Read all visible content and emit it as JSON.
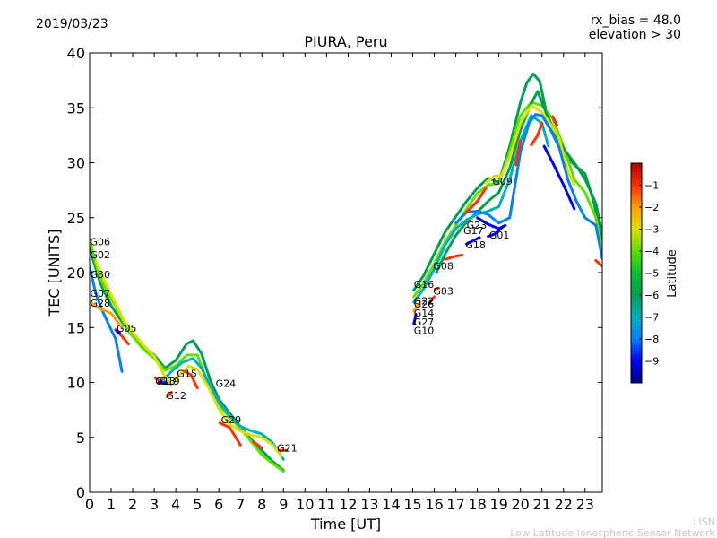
{
  "header": {
    "date": "2019/03/23",
    "rx_bias": "rx_bias = 48.0",
    "elevation": "elevation > 30"
  },
  "footer": {
    "line1": "LISN",
    "line2": "Low-Latitude Ionospheric Sensor Network"
  },
  "colorbar": {
    "label": "Latitude",
    "ticks": [
      "−1",
      "−2",
      "−3",
      "−4",
      "−5",
      "−6",
      "−7",
      "−8",
      "−9"
    ],
    "range": [
      -10,
      0
    ],
    "colors": [
      "#00007f",
      "#0000ff",
      "#0080ff",
      "#00b0c0",
      "#00a050",
      "#00c030",
      "#60e000",
      "#e0e000",
      "#ffa000",
      "#ff3000",
      "#b00000"
    ]
  },
  "chart_data": {
    "type": "line",
    "title": "PIURA, Peru",
    "xlabel": "Time [UT]",
    "ylabel": "TEC [UNITS]",
    "xlim": [
      0,
      23.8
    ],
    "ylim": [
      0,
      40
    ],
    "xticks": [
      0,
      1,
      2,
      3,
      4,
      5,
      6,
      7,
      8,
      9,
      10,
      11,
      12,
      13,
      14,
      15,
      16,
      17,
      18,
      19,
      20,
      21,
      22,
      23
    ],
    "yticks": [
      0,
      5,
      10,
      15,
      20,
      25,
      30,
      35,
      40
    ],
    "grid": false,
    "series": [
      {
        "color": "#00a050",
        "points": [
          [
            0,
            22.2
          ],
          [
            0.5,
            19
          ],
          [
            1,
            17
          ],
          [
            1.5,
            15.5
          ],
          [
            2,
            14.2
          ],
          [
            2.5,
            13.2
          ],
          [
            3,
            12.5
          ],
          [
            3.5,
            11.3
          ],
          [
            4,
            12
          ],
          [
            4.5,
            13.5
          ],
          [
            4.8,
            13.8
          ],
          [
            5.2,
            12.6
          ],
          [
            5.6,
            10.2
          ],
          [
            6,
            8.5
          ],
          [
            6.5,
            7.2
          ],
          [
            7,
            6
          ],
          [
            7.5,
            4.8
          ],
          [
            8,
            3.8
          ],
          [
            8.5,
            2.8
          ],
          [
            9,
            2
          ]
        ]
      },
      {
        "color": "#60e000",
        "points": [
          [
            0,
            23
          ],
          [
            0.4,
            20
          ],
          [
            0.8,
            18.2
          ],
          [
            1.2,
            17
          ],
          [
            1.6,
            15.4
          ],
          [
            2,
            14.2
          ],
          [
            2.5,
            13
          ],
          [
            3,
            12.2
          ],
          [
            3.5,
            11.1
          ],
          [
            4,
            11.5
          ],
          [
            4.5,
            12.5
          ],
          [
            5,
            12.5
          ],
          [
            5.5,
            9.8
          ],
          [
            6,
            8
          ],
          [
            6.5,
            6.8
          ],
          [
            7,
            5.8
          ],
          [
            7.5,
            4.6
          ],
          [
            8,
            3.4
          ],
          [
            8.5,
            2.6
          ],
          [
            9,
            1.9
          ]
        ]
      },
      {
        "color": "#00b0c0",
        "points": [
          [
            3.3,
            10
          ],
          [
            3.8,
            11
          ],
          [
            4.3,
            11.8
          ],
          [
            4.8,
            12.2
          ],
          [
            5.2,
            11.3
          ],
          [
            5.6,
            9.6
          ],
          [
            6,
            8.2
          ],
          [
            6.5,
            7
          ],
          [
            7,
            6
          ],
          [
            7.5,
            5.6
          ],
          [
            8,
            5.3
          ],
          [
            8.5,
            4.5
          ],
          [
            9,
            3
          ]
        ]
      },
      {
        "color": "#e0e000",
        "points": [
          [
            0.3,
            21
          ],
          [
            0.8,
            18.8
          ],
          [
            1.2,
            17.2
          ],
          [
            1.6,
            15.6
          ],
          [
            2,
            14.6
          ],
          [
            2.5,
            13.4
          ],
          [
            3,
            12.4
          ],
          [
            3.5,
            10.5
          ],
          [
            3.8,
            9.7
          ],
          [
            4.2,
            10.8
          ],
          [
            4.6,
            11.5
          ],
          [
            5,
            11.2
          ],
          [
            5.5,
            9.6
          ],
          [
            6,
            7.6
          ],
          [
            6.5,
            6.2
          ],
          [
            7,
            5.6
          ],
          [
            7.5,
            5.2
          ],
          [
            8,
            5
          ],
          [
            8.5,
            4.3
          ],
          [
            8.9,
            3.3
          ]
        ]
      },
      {
        "color": "#0080ff",
        "points": [
          [
            0,
            20.5
          ],
          [
            0.3,
            18
          ],
          [
            0.6,
            16.5
          ],
          [
            0.9,
            15.2
          ],
          [
            1.2,
            14
          ],
          [
            1.5,
            11
          ]
        ]
      },
      {
        "color": "#ffa000",
        "points": [
          [
            0,
            17.3
          ],
          [
            0.5,
            16.7
          ],
          [
            1,
            16.3
          ],
          [
            1.5,
            15
          ]
        ]
      },
      {
        "color": "#ff3000",
        "points": [
          [
            1.2,
            14.8
          ],
          [
            1.5,
            14.2
          ],
          [
            1.8,
            13.5
          ]
        ]
      },
      {
        "color": "#ff3000",
        "points": [
          [
            3.05,
            10.4
          ],
          [
            3.4,
            10
          ]
        ]
      },
      {
        "color": "#ff3000",
        "points": [
          [
            3.6,
            8.7
          ],
          [
            3.8,
            9.1
          ]
        ]
      },
      {
        "color": "#ff3000",
        "points": [
          [
            4.4,
            11
          ],
          [
            4.7,
            10.7
          ],
          [
            5,
            9.5
          ]
        ]
      },
      {
        "color": "#ff3000",
        "points": [
          [
            6.05,
            6.3
          ],
          [
            6.5,
            5.9
          ],
          [
            7,
            4.3
          ]
        ]
      },
      {
        "color": "#ff3000",
        "points": [
          [
            7.6,
            4.6
          ],
          [
            8,
            4
          ]
        ]
      },
      {
        "color": "#ff3000",
        "points": [
          [
            8.8,
            3.8
          ],
          [
            9.15,
            3.8
          ]
        ]
      },
      {
        "color": "#0000ff",
        "points": [
          [
            1.25,
            14.7
          ],
          [
            1.4,
            14.5
          ]
        ]
      },
      {
        "color": "#0000ff",
        "points": [
          [
            3.2,
            10
          ],
          [
            3.6,
            9.9
          ]
        ]
      },
      {
        "color": "#00a050",
        "points": [
          [
            15.05,
            18.4
          ],
          [
            15.5,
            19.7
          ],
          [
            16,
            21.7
          ],
          [
            16.5,
            23.7
          ],
          [
            17,
            25.1
          ],
          [
            17.5,
            26.5
          ],
          [
            18,
            27.7
          ],
          [
            18.5,
            28.6
          ],
          [
            19,
            28.2
          ],
          [
            19.5,
            31.5
          ],
          [
            20,
            35.5
          ],
          [
            20.3,
            37.3
          ],
          [
            20.6,
            38.1
          ],
          [
            20.9,
            37.4
          ],
          [
            21.2,
            34.6
          ],
          [
            21.6,
            32.6
          ],
          [
            22,
            30.8
          ],
          [
            22.5,
            29.8
          ],
          [
            23,
            29
          ],
          [
            23.4,
            26.5
          ],
          [
            23.8,
            22.5
          ]
        ]
      },
      {
        "color": "#60e000",
        "points": [
          [
            15.05,
            17.8
          ],
          [
            15.5,
            19
          ],
          [
            16,
            20.8
          ],
          [
            16.5,
            22.8
          ],
          [
            17,
            24.3
          ],
          [
            17.5,
            25.8
          ],
          [
            18,
            27.2
          ],
          [
            18.5,
            28
          ],
          [
            19,
            28.1
          ],
          [
            19.5,
            31
          ],
          [
            20,
            34.3
          ],
          [
            20.5,
            35.5
          ],
          [
            21,
            35.2
          ],
          [
            21.5,
            34
          ],
          [
            22,
            31.5
          ],
          [
            22.5,
            28.5
          ],
          [
            23,
            27.3
          ],
          [
            23.5,
            25
          ],
          [
            23.8,
            22
          ]
        ]
      },
      {
        "color": "#00a050",
        "points": [
          [
            16.1,
            20
          ],
          [
            16.5,
            21.7
          ],
          [
            17,
            23.4
          ],
          [
            17.5,
            24.6
          ],
          [
            18,
            25.5
          ],
          [
            18.5,
            26.5
          ],
          [
            19,
            27.3
          ],
          [
            19.5,
            29.5
          ],
          [
            20,
            33
          ],
          [
            20.5,
            35.4
          ],
          [
            20.8,
            36.5
          ],
          [
            21.2,
            34.5
          ],
          [
            21.6,
            32.8
          ],
          [
            22,
            31.3
          ],
          [
            22.5,
            30
          ],
          [
            23,
            28.5
          ],
          [
            23.5,
            26.3
          ],
          [
            23.8,
            23.5
          ]
        ]
      },
      {
        "color": "#e0e000",
        "points": [
          [
            18.4,
            28.2
          ],
          [
            18.8,
            28.8
          ],
          [
            19.1,
            28.8
          ],
          [
            19.5,
            30.5
          ],
          [
            20,
            33.6
          ],
          [
            20.5,
            35.2
          ],
          [
            21,
            34.6
          ],
          [
            21.4,
            33.5
          ],
          [
            21.8,
            32.2
          ],
          [
            22.2,
            29.2
          ],
          [
            22.5,
            28
          ]
        ]
      },
      {
        "color": "#00b0c0",
        "points": [
          [
            15.05,
            17.3
          ],
          [
            15.5,
            18.5
          ],
          [
            16,
            20.3
          ],
          [
            16.5,
            22.5
          ],
          [
            17,
            24
          ],
          [
            17.5,
            24.8
          ],
          [
            18,
            25.3
          ],
          [
            18.5,
            25.6
          ],
          [
            19,
            26
          ],
          [
            19.5,
            28.5
          ],
          [
            20,
            32
          ],
          [
            20.5,
            34.3
          ],
          [
            21,
            33.6
          ],
          [
            21.3,
            31.5
          ]
        ]
      },
      {
        "color": "#0080ff",
        "points": [
          [
            17,
            24.5
          ],
          [
            17.5,
            25.5
          ],
          [
            18,
            25.6
          ],
          [
            18.5,
            25.3
          ],
          [
            19,
            24.5
          ],
          [
            19.5,
            25
          ],
          [
            20,
            31
          ],
          [
            20.4,
            33.6
          ],
          [
            20.7,
            34.4
          ],
          [
            21,
            34.3
          ],
          [
            21.4,
            33
          ],
          [
            21.8,
            31.4
          ],
          [
            22.2,
            28.5
          ],
          [
            22.6,
            26.5
          ],
          [
            23,
            25
          ],
          [
            23.5,
            24.3
          ],
          [
            23.8,
            21.3
          ]
        ]
      },
      {
        "color": "#0000ff",
        "points": [
          [
            18,
            25
          ],
          [
            18.5,
            24.4
          ],
          [
            19,
            24
          ],
          [
            19.3,
            24.3
          ]
        ]
      },
      {
        "color": "#0000ff",
        "points": [
          [
            18.5,
            23.3
          ],
          [
            18.8,
            23.5
          ],
          [
            19.2,
            24.2
          ]
        ]
      },
      {
        "color": "#0000ff",
        "points": [
          [
            17.5,
            22.6
          ],
          [
            17.8,
            22.9
          ],
          [
            18.1,
            23.2
          ]
        ]
      },
      {
        "color": "#0000ff",
        "points": [
          [
            21.1,
            31.5
          ],
          [
            21.5,
            30
          ],
          [
            22,
            28
          ],
          [
            22.5,
            25.8
          ]
        ]
      },
      {
        "color": "#0000ff",
        "points": [
          [
            15.05,
            15.3
          ],
          [
            15.15,
            16.2
          ]
        ]
      },
      {
        "color": "#ffa000",
        "points": [
          [
            15.05,
            16.5
          ],
          [
            15.3,
            17.2
          ]
        ]
      },
      {
        "color": "#ff3000",
        "points": [
          [
            16.5,
            21.2
          ],
          [
            17,
            21.5
          ],
          [
            17.3,
            21.6
          ]
        ]
      },
      {
        "color": "#ff3000",
        "points": [
          [
            17.5,
            25.5
          ],
          [
            18,
            26.5
          ],
          [
            18.4,
            27.7
          ]
        ]
      },
      {
        "color": "#ff3000",
        "points": [
          [
            15.8,
            17.3
          ],
          [
            16,
            17.8
          ]
        ]
      },
      {
        "color": "#ff3000",
        "points": [
          [
            16.05,
            18.5
          ],
          [
            16.2,
            18.6
          ]
        ]
      },
      {
        "color": "#ff3000",
        "points": [
          [
            19.8,
            29.8
          ],
          [
            20,
            32
          ]
        ]
      },
      {
        "color": "#ff3000",
        "points": [
          [
            20.5,
            31.6
          ],
          [
            20.8,
            32.5
          ],
          [
            21,
            33.6
          ]
        ]
      },
      {
        "color": "#ff3000",
        "points": [
          [
            21.5,
            34.2
          ],
          [
            21.7,
            33.4
          ]
        ]
      },
      {
        "color": "#ff3000",
        "points": [
          [
            23.5,
            21.1
          ],
          [
            23.8,
            20.6
          ]
        ]
      }
    ],
    "labels": [
      {
        "text": "G06",
        "x": 0.02,
        "y": 22.5
      },
      {
        "text": "G02",
        "x": 0.02,
        "y": 21.3
      },
      {
        "text": "G30",
        "x": 0.02,
        "y": 19.5
      },
      {
        "text": "G07",
        "x": 0.02,
        "y": 17.8
      },
      {
        "text": "G28",
        "x": 0.02,
        "y": 16.9
      },
      {
        "text": "G05",
        "x": 1.25,
        "y": 14.6
      },
      {
        "text": "G15",
        "x": 4.05,
        "y": 10.5
      },
      {
        "text": "G13",
        "x": 3.05,
        "y": 9.8
      },
      {
        "text": "G19",
        "x": 3.25,
        "y": 9.8
      },
      {
        "text": "G12",
        "x": 3.55,
        "y": 8.5
      },
      {
        "text": "G24",
        "x": 5.85,
        "y": 9.6
      },
      {
        "text": "G29",
        "x": 6.1,
        "y": 6.3
      },
      {
        "text": "G21",
        "x": 8.7,
        "y": 3.7
      },
      {
        "text": "G16",
        "x": 15.05,
        "y": 18.6
      },
      {
        "text": "G03",
        "x": 15.95,
        "y": 18.0
      },
      {
        "text": "G22",
        "x": 15.05,
        "y": 17.1
      },
      {
        "text": "G26",
        "x": 15.05,
        "y": 16.8
      },
      {
        "text": "G14",
        "x": 15.05,
        "y": 16.0
      },
      {
        "text": "G27",
        "x": 15.05,
        "y": 15.2
      },
      {
        "text": "G10",
        "x": 15.05,
        "y": 14.4
      },
      {
        "text": "G08",
        "x": 15.95,
        "y": 20.3
      },
      {
        "text": "G09",
        "x": 18.7,
        "y": 28.0
      },
      {
        "text": "G23",
        "x": 17.5,
        "y": 24.0
      },
      {
        "text": "G17",
        "x": 17.35,
        "y": 23.5
      },
      {
        "text": "G01",
        "x": 18.55,
        "y": 23.1
      },
      {
        "text": "G18",
        "x": 17.45,
        "y": 22.2
      }
    ]
  }
}
